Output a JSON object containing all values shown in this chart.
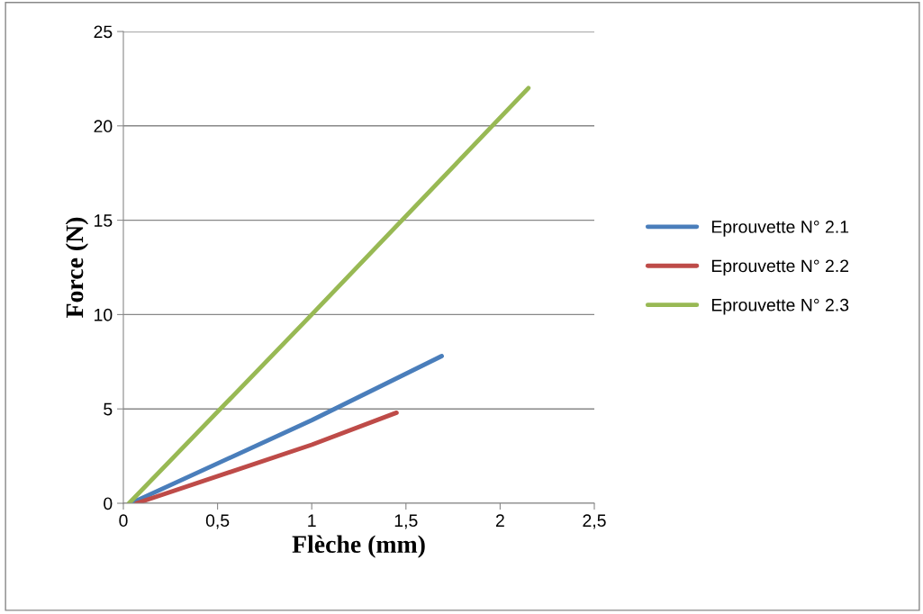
{
  "chart_data": {
    "type": "line",
    "xlabel": "Flèche (mm)",
    "ylabel": "Force (N)",
    "xlim": [
      0,
      2.5
    ],
    "ylim": [
      0,
      25
    ],
    "xticks": [
      0,
      {
        "value": 0.5,
        "label": "0,5"
      },
      1,
      {
        "value": 1.5,
        "label": "1,5"
      },
      2,
      {
        "value": 2.5,
        "label": "2,5"
      }
    ],
    "yticks": [
      0,
      5,
      10,
      15,
      20,
      25
    ],
    "grid": "y",
    "legend": "right",
    "marker": "none",
    "line_style": "solid",
    "series": [
      {
        "name": "Eprouvette N° 2.1",
        "color": "#4a7ebb",
        "x": [
          0.04,
          1.0,
          1.69
        ],
        "values": [
          0,
          4.4,
          7.8
        ]
      },
      {
        "name": "Eprouvette N° 2.2",
        "color": "#be4b48",
        "x": [
          0.07,
          1.0,
          1.45
        ],
        "values": [
          0,
          3.1,
          4.8
        ]
      },
      {
        "name": "Eprouvette N° 2.3",
        "color": "#98b954",
        "x": [
          0.03,
          1.0,
          2.15
        ],
        "values": [
          0,
          10.0,
          22.0
        ]
      }
    ]
  }
}
